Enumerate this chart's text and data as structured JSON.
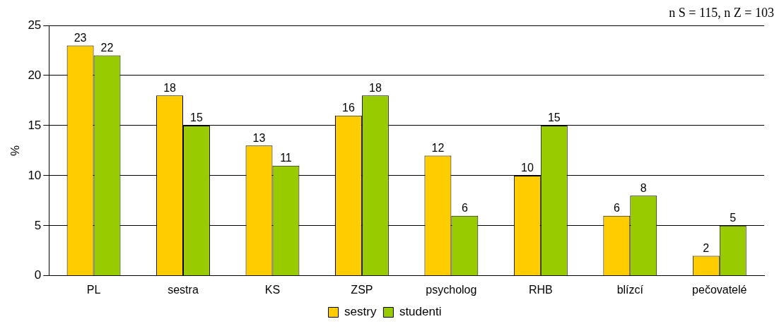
{
  "chart_data": {
    "type": "bar",
    "ylabel": "%",
    "categories": [
      "PL",
      "sestra",
      "KS",
      "ZSP",
      "psycholog",
      "RHB",
      "blízcí",
      "pečovatelé"
    ],
    "series": [
      {
        "name": "sestry",
        "color": "#ffcc00",
        "values": [
          23,
          18,
          13,
          16,
          12,
          10,
          6,
          2
        ]
      },
      {
        "name": "studenti",
        "color": "#99cc00",
        "values": [
          22,
          15,
          11,
          18,
          6,
          15,
          8,
          5
        ]
      }
    ],
    "ylim": [
      0,
      25
    ],
    "yticks": [
      0,
      5,
      10,
      15,
      20,
      25
    ],
    "grid": "y",
    "legend": "bottom",
    "data_labels": true,
    "annotations": [
      "n S = 115, n Z = 103"
    ]
  }
}
